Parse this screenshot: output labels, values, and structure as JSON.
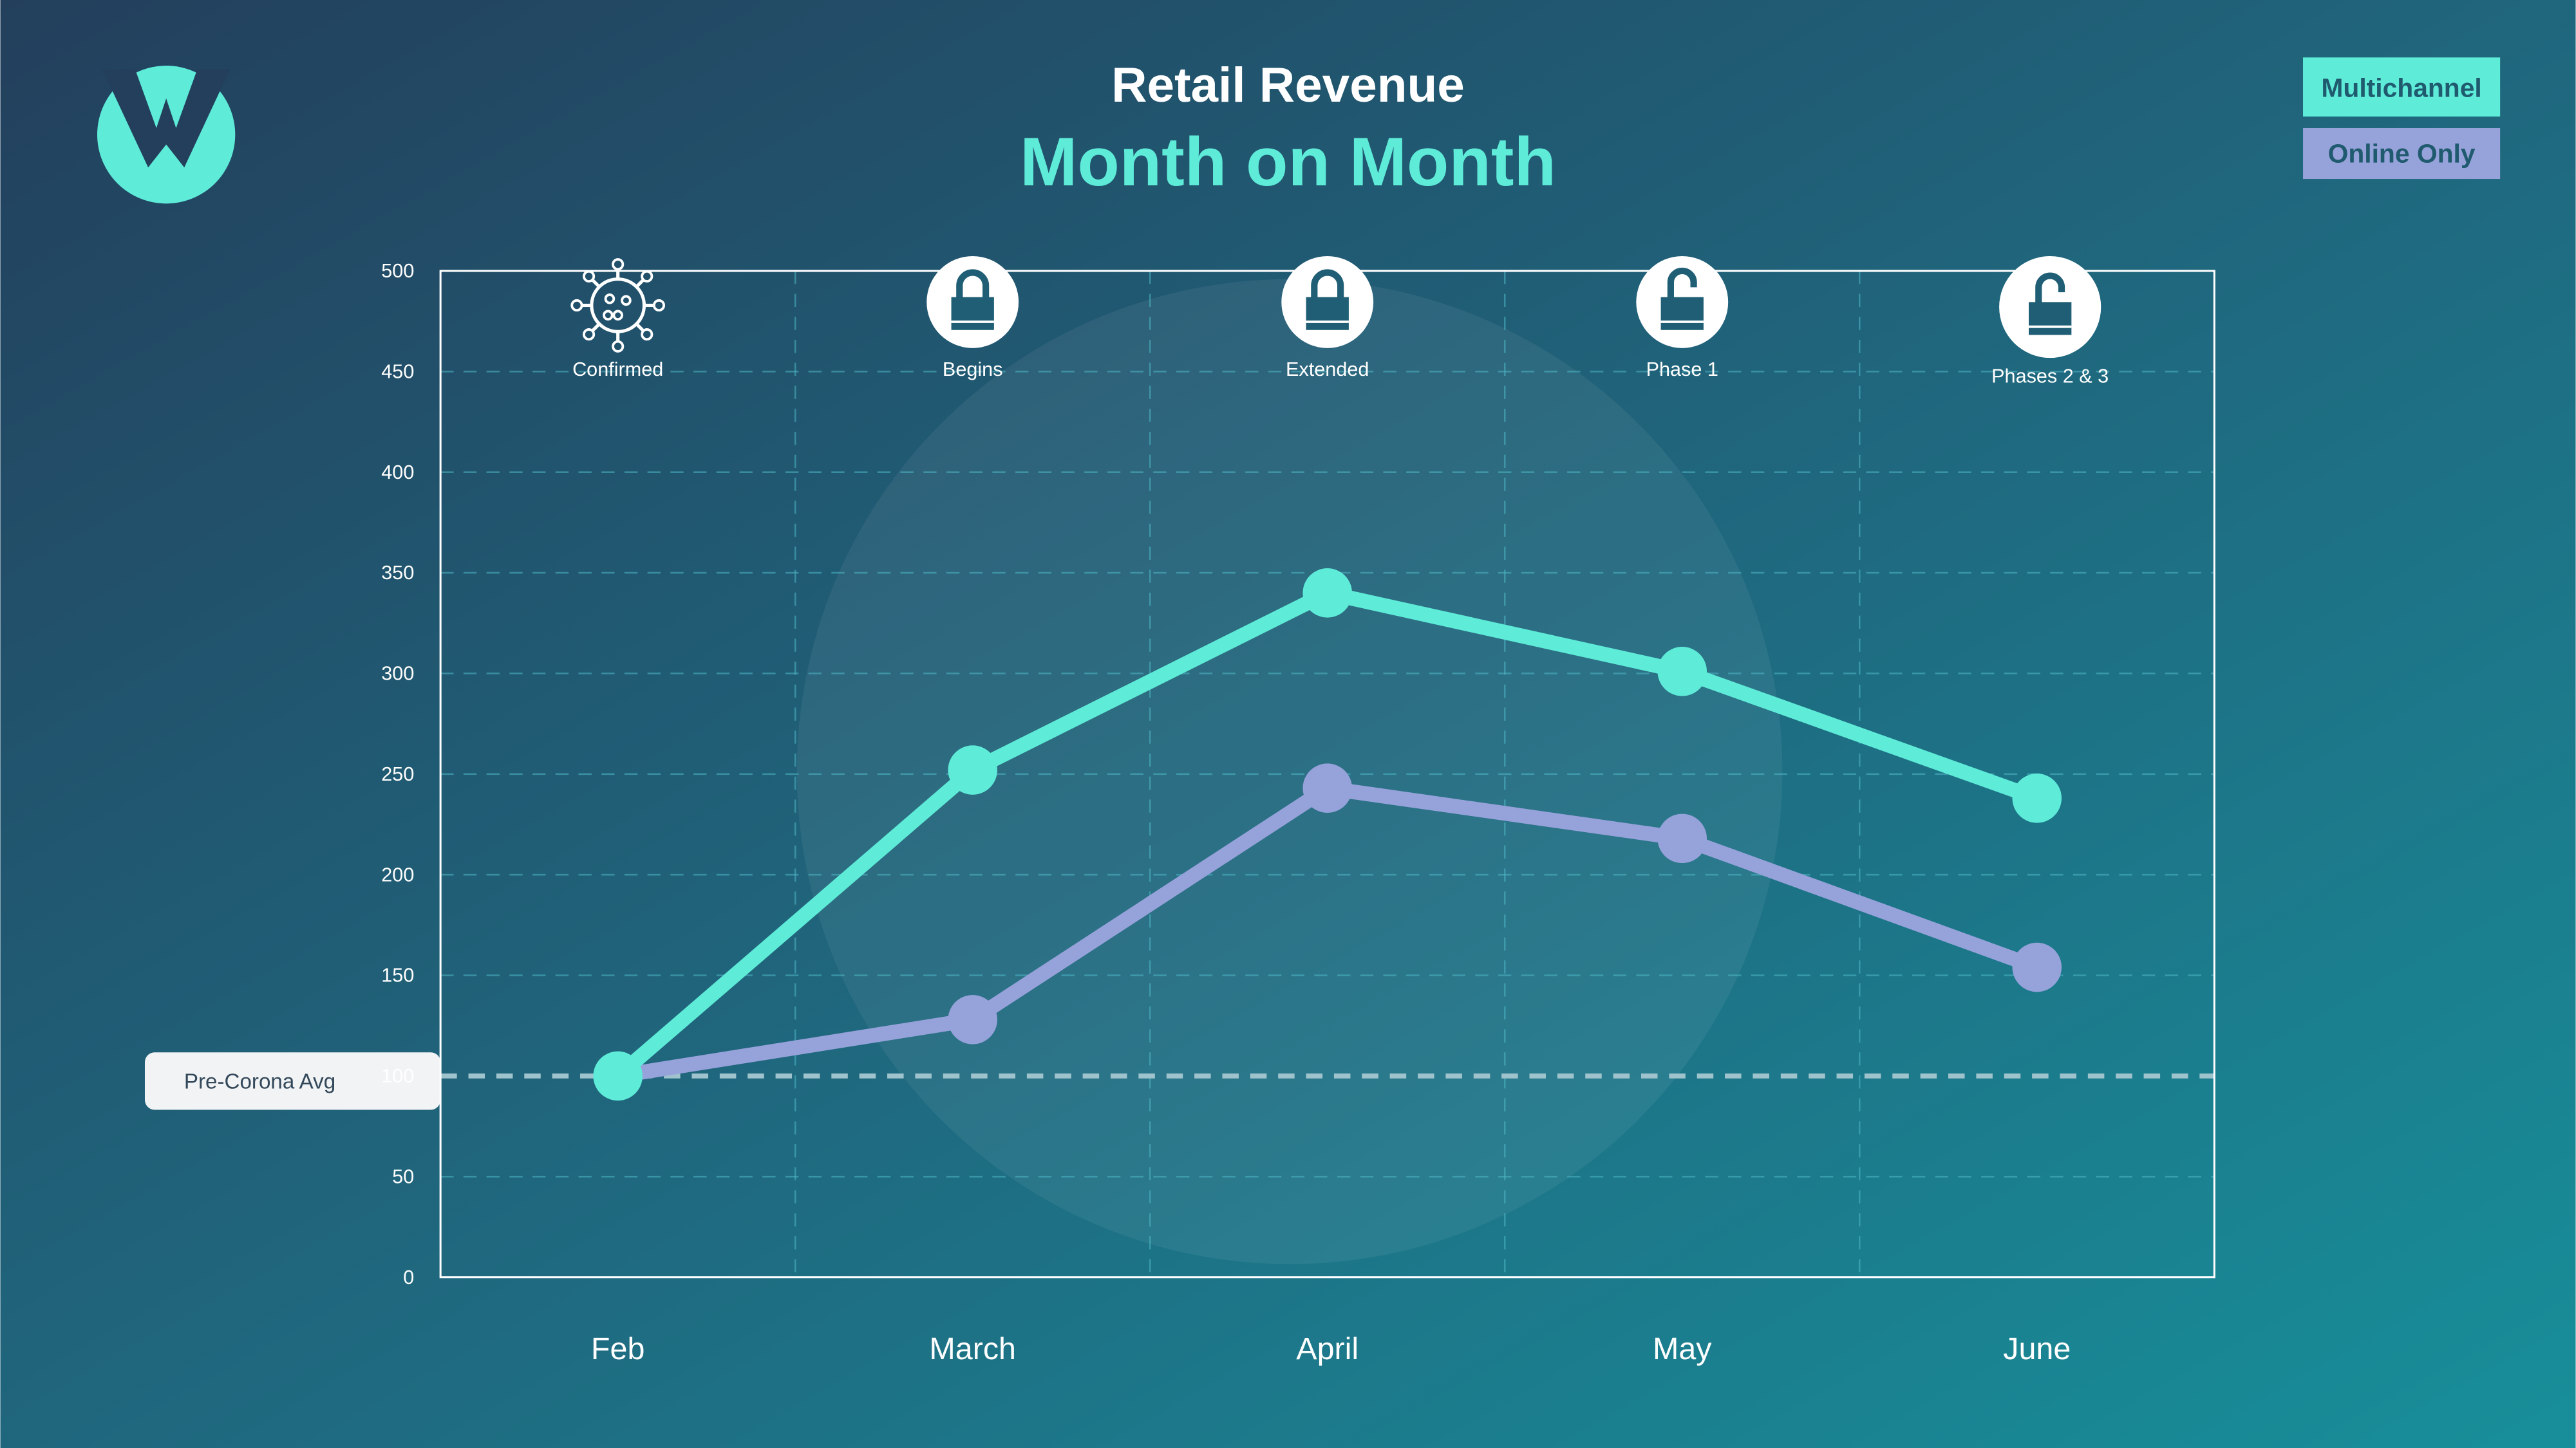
{
  "header": {
    "title": "Retail Revenue",
    "subtitle": "Month on Month"
  },
  "legend": [
    {
      "label": "Multichannel",
      "color": "#5eecd9"
    },
    {
      "label": "Online Only",
      "color": "#96a2da"
    }
  ],
  "reference_line": {
    "label": "Pre-Corona Avg",
    "value": 100
  },
  "annotations": [
    {
      "category": "Feb",
      "icon": "virus-icon",
      "label": "Confirmed"
    },
    {
      "category": "March",
      "icon": "lock-closed-icon",
      "label": "Begins"
    },
    {
      "category": "April",
      "icon": "lock-closed-icon",
      "label": "Extended"
    },
    {
      "category": "May",
      "icon": "lock-open-icon",
      "label": "Phase 1"
    },
    {
      "category": "June",
      "icon": "lock-open-icon",
      "label": "Phases 2 & 3"
    }
  ],
  "chart_data": {
    "type": "line",
    "title": "Retail Revenue",
    "subtitle": "Month on Month",
    "categories": [
      "Feb",
      "March",
      "April",
      "May",
      "June"
    ],
    "series": [
      {
        "name": "Multichannel",
        "color": "#5eecd9",
        "values": [
          100,
          252,
          340,
          301,
          238
        ]
      },
      {
        "name": "Online Only",
        "color": "#96a2da",
        "values": [
          100,
          128,
          243,
          218,
          154
        ]
      }
    ],
    "ylim": [
      0,
      500
    ],
    "yticks": [
      0,
      50,
      100,
      150,
      200,
      250,
      300,
      350,
      400,
      450,
      500
    ],
    "grid": true,
    "legend_position": "top-right"
  }
}
